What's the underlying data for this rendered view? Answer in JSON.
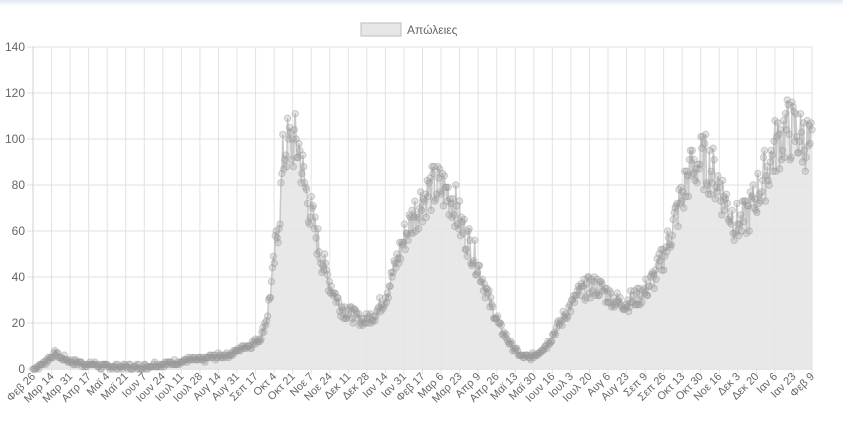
{
  "chart_data": {
    "type": "line",
    "legend": {
      "label": "Απώλειες",
      "position": "top",
      "swatch_fill": "#e6e6e6",
      "swatch_stroke": "#bdbdbd"
    },
    "ylim": [
      0,
      140
    ],
    "yticks": [
      0,
      20,
      40,
      60,
      80,
      100,
      120,
      140
    ],
    "xlabels": [
      "Φεβ 26",
      "Μαρ 14",
      "Μαρ 31",
      "Απρ 17",
      "Μαϊ 4",
      "Μαϊ 21",
      "Ιουν 7",
      "Ιουν 24",
      "Ιουλ 11",
      "Ιουλ 28",
      "Αυγ 14",
      "Αυγ 31",
      "Σεπ 17",
      "Οκτ 4",
      "Οκτ 21",
      "Νοε 7",
      "Νοε 24",
      "Δεκ 11",
      "Δεκ 28",
      "Ιαν 14",
      "Ιαν 31",
      "Φεβ 17",
      "Μαρ 6",
      "Μαρ 23",
      "Απρ 9",
      "Απρ 26",
      "Μαϊ 13",
      "Μαϊ 30",
      "Ιουν 16",
      "Ιουλ 3",
      "Ιουλ 20",
      "Αυγ 6",
      "Αυγ 23",
      "Σεπ 9",
      "Σεπ 26",
      "Οκτ 13",
      "Οκτ 30",
      "Νοε 16",
      "Δεκ 3",
      "Δεκ 20",
      "Ιαν 6",
      "Ιαν 23",
      "Φεβ 9"
    ],
    "series": [
      {
        "name": "Απώλειες",
        "color": "#999999",
        "fill": "#e6e6e6",
        "keypoints": [
          [
            0,
            0
          ],
          [
            6,
            1
          ],
          [
            12,
            3
          ],
          [
            18,
            5
          ],
          [
            24,
            7
          ],
          [
            30,
            5
          ],
          [
            36,
            4
          ],
          [
            42,
            3
          ],
          [
            48,
            3
          ],
          [
            54,
            2
          ],
          [
            60,
            2
          ],
          [
            66,
            2
          ],
          [
            72,
            1
          ],
          [
            78,
            1
          ],
          [
            84,
            1
          ],
          [
            90,
            1
          ],
          [
            96,
            1
          ],
          [
            102,
            1
          ],
          [
            108,
            1
          ],
          [
            114,
            1
          ],
          [
            120,
            1
          ],
          [
            126,
            2
          ],
          [
            132,
            2
          ],
          [
            138,
            2
          ],
          [
            144,
            2
          ],
          [
            150,
            3
          ],
          [
            156,
            3
          ],
          [
            162,
            4
          ],
          [
            168,
            4
          ],
          [
            174,
            4
          ],
          [
            180,
            4
          ],
          [
            186,
            5
          ],
          [
            192,
            5
          ],
          [
            198,
            6
          ],
          [
            204,
            6
          ],
          [
            210,
            7
          ],
          [
            216,
            8
          ],
          [
            222,
            10
          ],
          [
            228,
            10
          ],
          [
            234,
            12
          ],
          [
            240,
            14
          ],
          [
            246,
            22
          ],
          [
            252,
            40
          ],
          [
            256,
            55
          ],
          [
            260,
            70
          ],
          [
            263,
            90
          ],
          [
            266,
            98
          ],
          [
            270,
            97
          ],
          [
            276,
            98
          ],
          [
            280,
            96
          ],
          [
            284,
            85
          ],
          [
            288,
            76
          ],
          [
            294,
            65
          ],
          [
            300,
            55
          ],
          [
            306,
            45
          ],
          [
            312,
            38
          ],
          [
            318,
            32
          ],
          [
            324,
            27
          ],
          [
            330,
            25
          ],
          [
            336,
            24
          ],
          [
            342,
            22
          ],
          [
            348,
            21
          ],
          [
            354,
            22
          ],
          [
            360,
            24
          ],
          [
            366,
            28
          ],
          [
            372,
            33
          ],
          [
            378,
            40
          ],
          [
            384,
            48
          ],
          [
            390,
            56
          ],
          [
            396,
            62
          ],
          [
            402,
            68
          ],
          [
            408,
            72
          ],
          [
            414,
            76
          ],
          [
            420,
            78
          ],
          [
            426,
            79
          ],
          [
            432,
            78
          ],
          [
            438,
            76
          ],
          [
            444,
            72
          ],
          [
            450,
            63
          ],
          [
            456,
            58
          ],
          [
            462,
            52
          ],
          [
            468,
            46
          ],
          [
            474,
            38
          ],
          [
            480,
            30
          ],
          [
            486,
            24
          ],
          [
            492,
            18
          ],
          [
            498,
            14
          ],
          [
            504,
            10
          ],
          [
            510,
            7
          ],
          [
            516,
            5
          ],
          [
            522,
            5
          ],
          [
            528,
            6
          ],
          [
            534,
            8
          ],
          [
            540,
            10
          ],
          [
            546,
            14
          ],
          [
            552,
            18
          ],
          [
            558,
            22
          ],
          [
            564,
            26
          ],
          [
            570,
            30
          ],
          [
            576,
            33
          ],
          [
            582,
            35
          ],
          [
            588,
            36
          ],
          [
            594,
            36
          ],
          [
            600,
            34
          ],
          [
            606,
            32
          ],
          [
            612,
            30
          ],
          [
            618,
            29
          ],
          [
            624,
            29
          ],
          [
            630,
            30
          ],
          [
            636,
            31
          ],
          [
            642,
            33
          ],
          [
            648,
            36
          ],
          [
            654,
            40
          ],
          [
            660,
            45
          ],
          [
            666,
            52
          ],
          [
            672,
            60
          ],
          [
            678,
            68
          ],
          [
            684,
            76
          ],
          [
            690,
            84
          ],
          [
            696,
            88
          ],
          [
            702,
            90
          ],
          [
            708,
            90
          ],
          [
            714,
            87
          ],
          [
            720,
            82
          ],
          [
            726,
            76
          ],
          [
            732,
            70
          ],
          [
            738,
            65
          ],
          [
            744,
            63
          ],
          [
            750,
            65
          ],
          [
            756,
            70
          ],
          [
            762,
            76
          ],
          [
            768,
            82
          ],
          [
            774,
            88
          ],
          [
            780,
            95
          ],
          [
            786,
            100
          ],
          [
            792,
            104
          ],
          [
            798,
            104
          ],
          [
            804,
            102
          ],
          [
            810,
            100
          ],
          [
            816,
            98
          ],
          [
            820,
            95
          ]
        ]
      }
    ]
  }
}
